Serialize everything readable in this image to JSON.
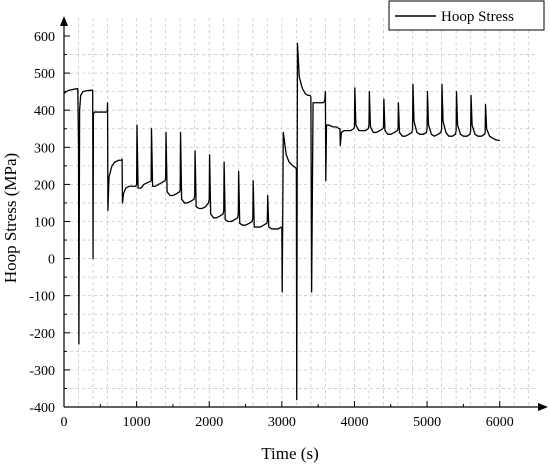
{
  "chart_data": {
    "type": "line",
    "xlabel": "Time (s)",
    "ylabel": "Hoop Stress (MPa)",
    "xlim": [
      0,
      6500
    ],
    "ylim": [
      -400,
      600
    ],
    "x_ticks": [
      0,
      1000,
      2000,
      3000,
      4000,
      5000,
      6000
    ],
    "y_ticks": [
      -400,
      -300,
      -200,
      -100,
      0,
      100,
      200,
      300,
      400,
      500,
      600
    ],
    "x_tick_labels": [
      "0",
      "1000",
      "2000",
      "3000",
      "4000",
      "5000",
      "6000"
    ],
    "y_tick_labels": [
      "-400",
      "-300",
      "-200",
      "-100",
      "0",
      "100",
      "200",
      "300",
      "400",
      "500",
      "600"
    ],
    "grid": true,
    "legend_position": "top-right",
    "series": [
      {
        "name": "Hoop Stress",
        "color": "#000000",
        "x": [
          0,
          30,
          60,
          100,
          150,
          190,
          200,
          205,
          215,
          230,
          260,
          300,
          340,
          380,
          395,
          400,
          405,
          420,
          460,
          500,
          540,
          580,
          595,
          600,
          605,
          620,
          660,
          700,
          750,
          790,
          800,
          805,
          820,
          850,
          900,
          950,
          990,
          1000,
          1005,
          1020,
          1060,
          1100,
          1150,
          1190,
          1200,
          1205,
          1220,
          1260,
          1300,
          1350,
          1390,
          1400,
          1405,
          1420,
          1460,
          1500,
          1550,
          1590,
          1600,
          1605,
          1620,
          1660,
          1700,
          1750,
          1790,
          1800,
          1805,
          1820,
          1860,
          1900,
          1950,
          1990,
          2000,
          2005,
          2020,
          2060,
          2100,
          2150,
          2190,
          2200,
          2205,
          2220,
          2260,
          2300,
          2350,
          2390,
          2400,
          2405,
          2420,
          2460,
          2500,
          2550,
          2590,
          2600,
          2605,
          2620,
          2660,
          2700,
          2750,
          2790,
          2800,
          2805,
          2820,
          2860,
          2900,
          2950,
          2990,
          3000,
          3005,
          3020,
          3060,
          3100,
          3150,
          3190,
          3200,
          3205,
          3215,
          3240,
          3280,
          3320,
          3360,
          3390,
          3400,
          3410,
          3430,
          3470,
          3520,
          3570,
          3590,
          3600,
          3605,
          3615,
          3650,
          3700,
          3750,
          3790,
          3800,
          3805,
          3820,
          3860,
          3900,
          3950,
          3990,
          4000,
          4005,
          4020,
          4060,
          4100,
          4150,
          4190,
          4200,
          4205,
          4220,
          4260,
          4300,
          4350,
          4390,
          4400,
          4405,
          4420,
          4460,
          4500,
          4550,
          4590,
          4600,
          4605,
          4620,
          4660,
          4700,
          4750,
          4790,
          4800,
          4805,
          4820,
          4860,
          4900,
          4950,
          4990,
          5000,
          5005,
          5020,
          5060,
          5100,
          5150,
          5190,
          5200,
          5205,
          5220,
          5260,
          5300,
          5350,
          5390,
          5400,
          5405,
          5420,
          5460,
          5500,
          5550,
          5590,
          5600,
          5605,
          5620,
          5660,
          5700,
          5750,
          5790,
          5800,
          5805,
          5820,
          5860,
          5900,
          5950,
          6000
        ],
        "y": [
          445,
          450,
          453,
          455,
          457,
          458,
          300,
          -230,
          400,
          440,
          450,
          452,
          453,
          454,
          454,
          0,
          390,
          395,
          395,
          395,
          395,
          395,
          395,
          420,
          130,
          220,
          250,
          260,
          265,
          265,
          268,
          150,
          175,
          190,
          195,
          195,
          195,
          200,
          360,
          190,
          190,
          200,
          205,
          208,
          210,
          350,
          195,
          195,
          200,
          205,
          210,
          215,
          340,
          180,
          170,
          170,
          175,
          180,
          185,
          340,
          160,
          150,
          150,
          155,
          160,
          170,
          290,
          140,
          135,
          135,
          140,
          150,
          160,
          280,
          120,
          110,
          110,
          115,
          120,
          130,
          260,
          105,
          100,
          100,
          105,
          110,
          120,
          235,
          95,
          90,
          90,
          95,
          100,
          110,
          210,
          85,
          85,
          85,
          90,
          95,
          100,
          170,
          85,
          80,
          80,
          80,
          85,
          80,
          -90,
          340,
          280,
          260,
          250,
          245,
          240,
          -380,
          580,
          490,
          460,
          445,
          440,
          440,
          435,
          -90,
          420,
          420,
          420,
          420,
          425,
          450,
          210,
          360,
          360,
          355,
          355,
          350,
          350,
          305,
          340,
          345,
          345,
          345,
          350,
          355,
          460,
          360,
          345,
          345,
          345,
          350,
          360,
          450,
          355,
          340,
          340,
          345,
          350,
          355,
          430,
          345,
          335,
          335,
          340,
          345,
          350,
          420,
          340,
          330,
          330,
          335,
          340,
          350,
          470,
          370,
          340,
          335,
          335,
          340,
          350,
          450,
          360,
          335,
          330,
          335,
          340,
          350,
          470,
          370,
          340,
          330,
          330,
          335,
          345,
          450,
          360,
          335,
          330,
          330,
          335,
          345,
          440,
          360,
          335,
          330,
          330,
          335,
          340,
          415,
          350,
          330,
          325,
          320,
          318
        ]
      }
    ]
  }
}
